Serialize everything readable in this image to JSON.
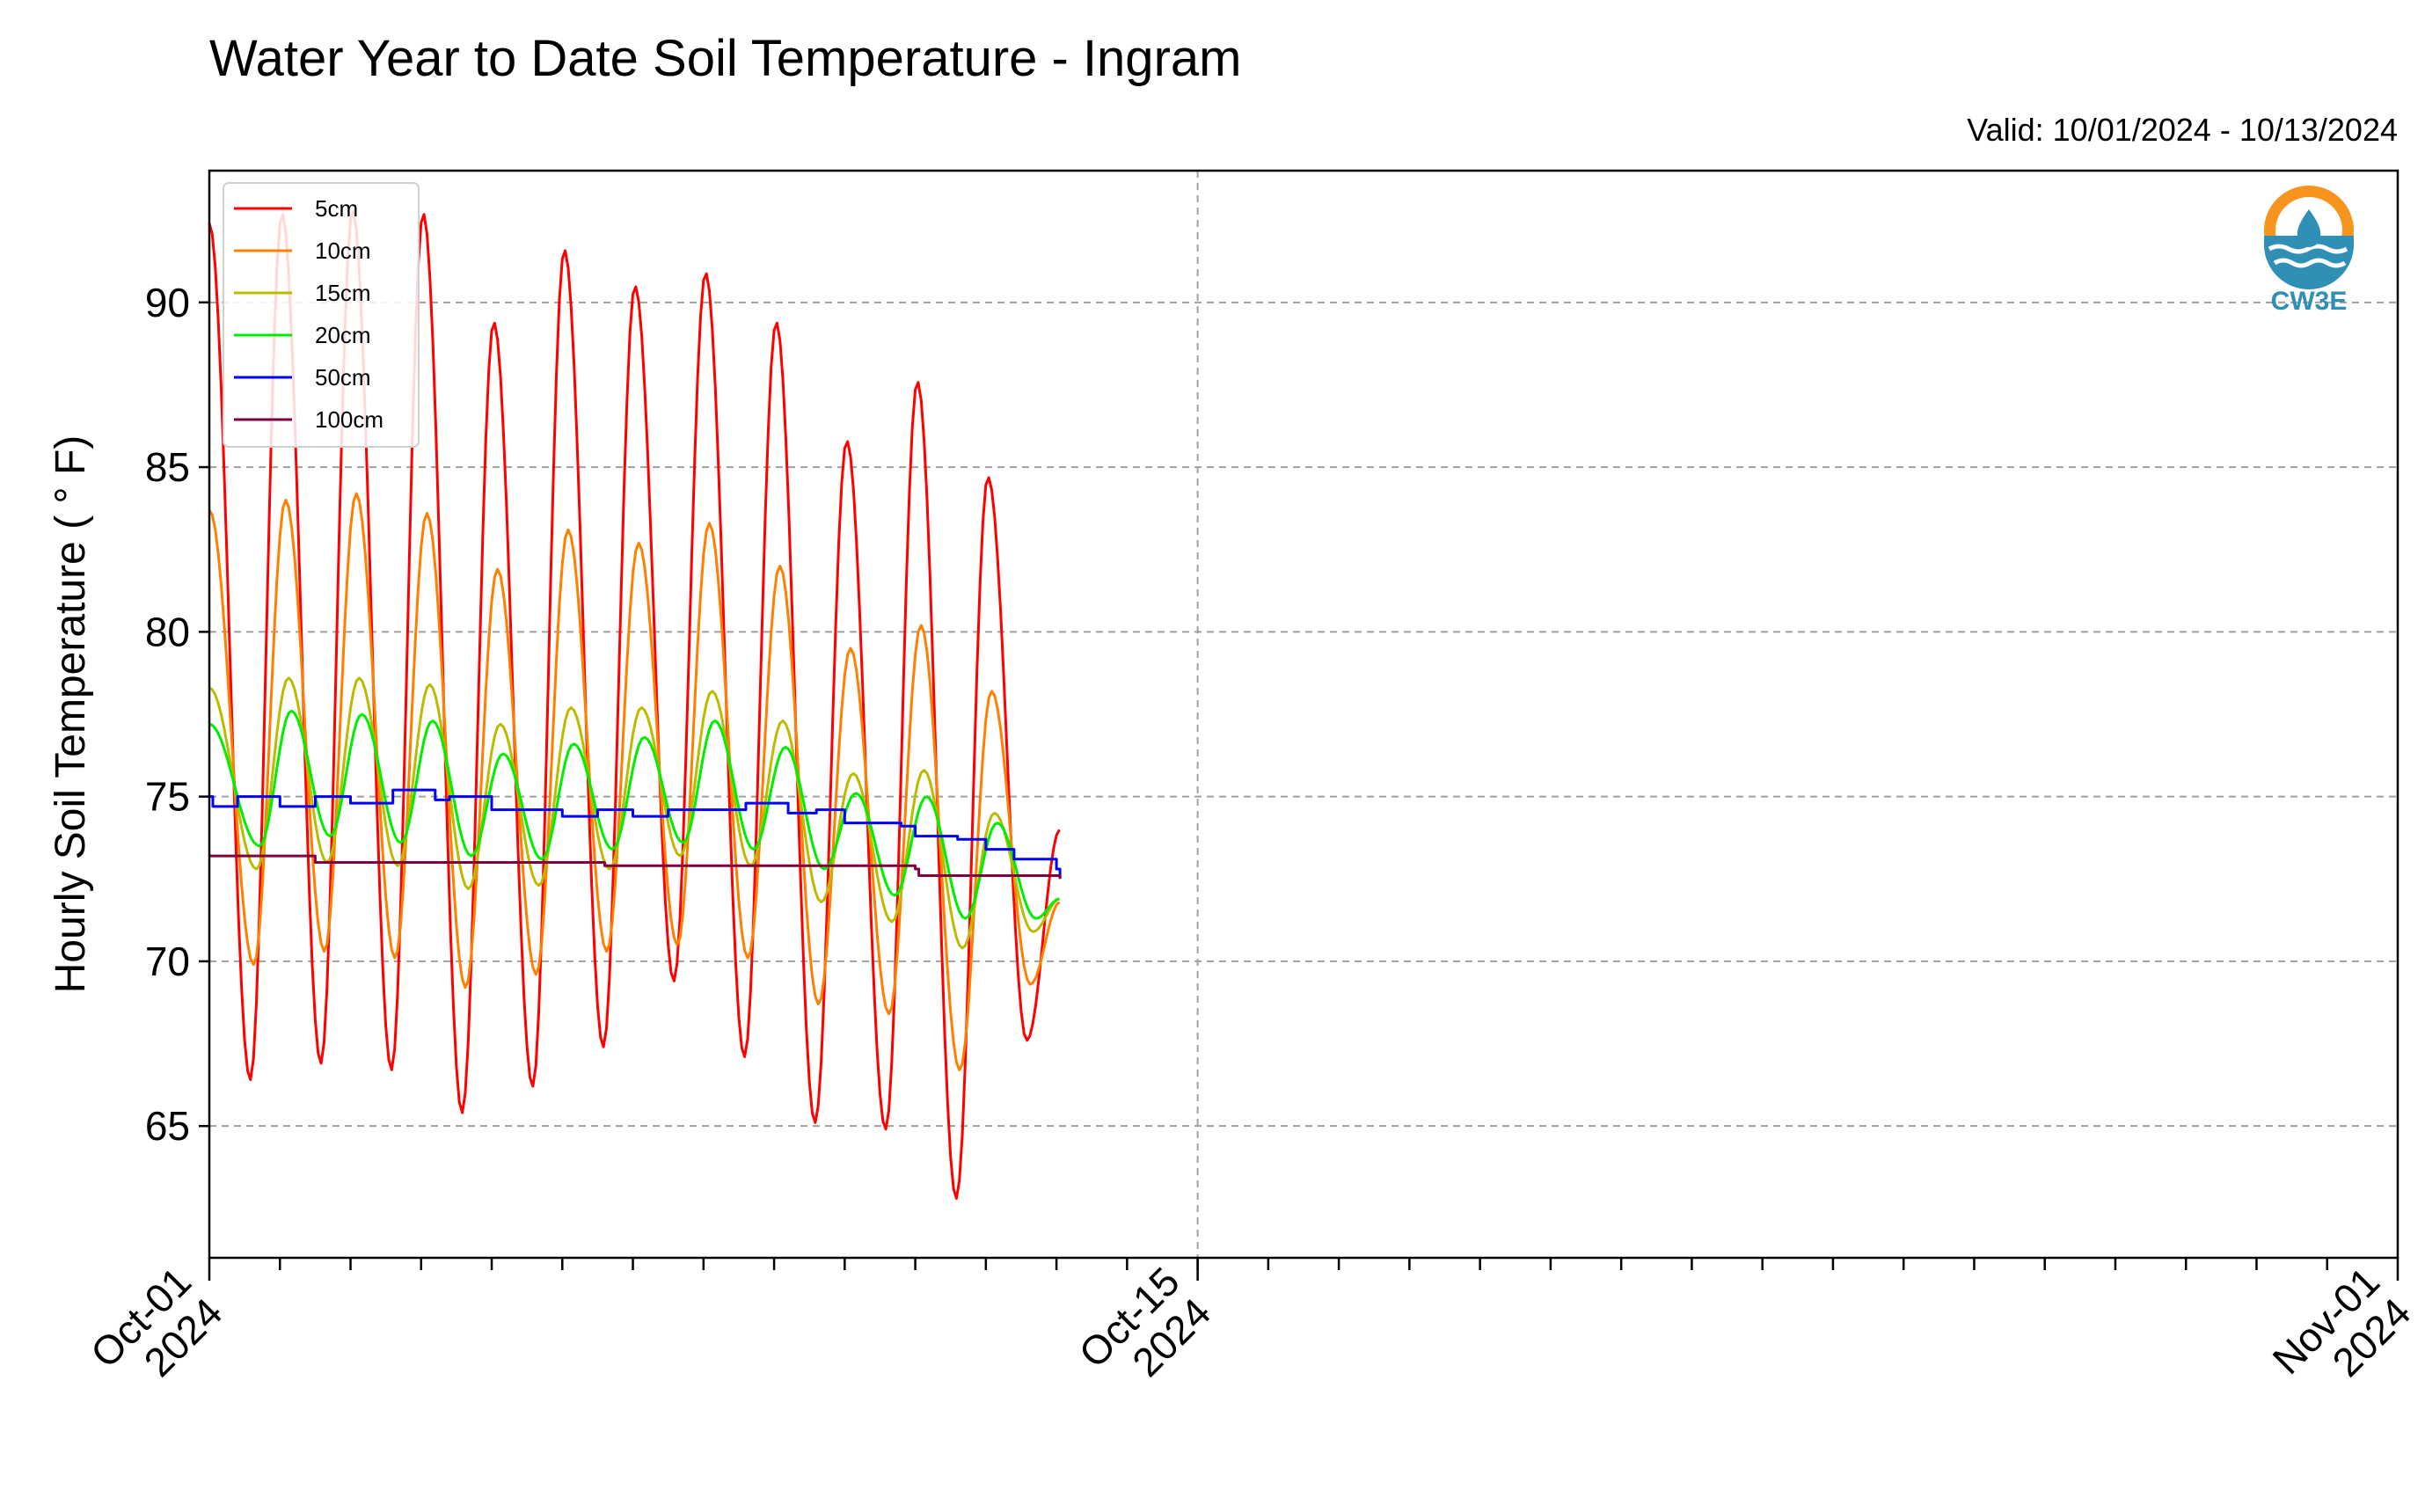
{
  "chart_data": {
    "type": "line",
    "title": "Water Year to Date Soil Temperature - Ingram",
    "subtitle": "Valid: 10/01/2024 - 10/13/2024",
    "ylabel": "Hourly Soil Temperature ( ° F)",
    "xlabel": "",
    "xlim": [
      "2024-10-01",
      "2024-11-01"
    ],
    "ylim": [
      61,
      94
    ],
    "yticks": [
      65,
      70,
      75,
      80,
      85,
      90
    ],
    "xticks_major": [
      {
        "date": "2024-10-01",
        "label": [
          "Oct-01",
          "2024"
        ]
      },
      {
        "date": "2024-10-15",
        "label": [
          "Oct-15",
          "2024"
        ]
      },
      {
        "date": "2024-11-01",
        "label": [
          "Nov-01",
          "2024"
        ]
      }
    ],
    "grid": true,
    "legend_position": "top-left",
    "series": [
      {
        "name": "5cm",
        "color": "#ff0000",
        "peak_time": 0.03,
        "peaks": [
          92.4,
          92.7,
          92.8,
          92.7,
          89.4,
          91.6,
          90.5,
          90.9,
          89.4,
          85.8,
          87.6,
          84.7
        ],
        "troughs": [
          66.4,
          66.9,
          66.7,
          65.4,
          66.2,
          67.4,
          69.4,
          67.1,
          65.1,
          64.9,
          62.8,
          67.6
        ],
        "end_value": 74.0
      },
      {
        "name": "10cm",
        "color": "#ff8000",
        "peak_time": 0.08,
        "peaks": [
          83.7,
          84.0,
          84.2,
          83.6,
          81.9,
          83.1,
          82.7,
          83.3,
          82.0,
          79.5,
          80.2,
          78.2
        ],
        "troughs": [
          69.9,
          70.3,
          70.1,
          69.2,
          69.6,
          70.3,
          70.5,
          70.1,
          68.7,
          68.4,
          66.7,
          69.3
        ],
        "end_value": 71.8
      },
      {
        "name": "15cm",
        "color": "#bbbb00",
        "peak_time": 0.12,
        "peaks": [
          78.3,
          78.6,
          78.6,
          78.4,
          77.2,
          77.7,
          77.7,
          78.2,
          77.3,
          75.7,
          75.8,
          74.5
        ],
        "troughs": [
          72.8,
          73.0,
          72.9,
          72.2,
          72.3,
          72.8,
          73.2,
          72.9,
          71.8,
          71.2,
          70.4,
          70.9
        ],
        "end_value": 71.9
      },
      {
        "name": "20cm",
        "color": "#00ee00",
        "peak_time": 0.16,
        "peaks": [
          77.2,
          77.6,
          77.5,
          77.3,
          76.3,
          76.6,
          76.8,
          77.3,
          76.5,
          75.1,
          75.0,
          74.2
        ],
        "troughs": [
          73.5,
          73.8,
          73.6,
          73.2,
          73.1,
          73.4,
          73.6,
          73.4,
          72.8,
          72.0,
          71.3,
          71.3
        ],
        "end_value": 71.9
      },
      {
        "name": "50cm",
        "color": "#0000ff",
        "points": [
          [
            0.0,
            75.0
          ],
          [
            0.05,
            74.7
          ],
          [
            0.4,
            75.0
          ],
          [
            1.0,
            74.7
          ],
          [
            1.5,
            75.0
          ],
          [
            2.0,
            74.8
          ],
          [
            2.6,
            75.2
          ],
          [
            3.2,
            74.9
          ],
          [
            3.4,
            75.0
          ],
          [
            4.0,
            74.6
          ],
          [
            4.5,
            74.6
          ],
          [
            5.0,
            74.4
          ],
          [
            5.5,
            74.6
          ],
          [
            6.0,
            74.4
          ],
          [
            6.5,
            74.6
          ],
          [
            7.2,
            74.6
          ],
          [
            7.6,
            74.8
          ],
          [
            8.2,
            74.5
          ],
          [
            8.6,
            74.6
          ],
          [
            9.0,
            74.2
          ],
          [
            9.8,
            74.1
          ],
          [
            10.0,
            73.8
          ],
          [
            10.6,
            73.7
          ],
          [
            11.0,
            73.4
          ],
          [
            11.4,
            73.1
          ],
          [
            12.0,
            73.0
          ],
          [
            12.0,
            72.8
          ],
          [
            12.05,
            72.6
          ]
        ]
      },
      {
        "name": "100cm",
        "color": "#800040",
        "points": [
          [
            0.0,
            73.2
          ],
          [
            1.5,
            73.2
          ],
          [
            1.5,
            73.0
          ],
          [
            5.5,
            73.0
          ],
          [
            5.6,
            72.9
          ],
          [
            10.0,
            72.8
          ],
          [
            10.05,
            72.6
          ],
          [
            12.05,
            72.5
          ]
        ]
      }
    ]
  },
  "logo": {
    "text": "CW3E",
    "orange": "#f7941d",
    "blue": "#2f8fb5"
  }
}
